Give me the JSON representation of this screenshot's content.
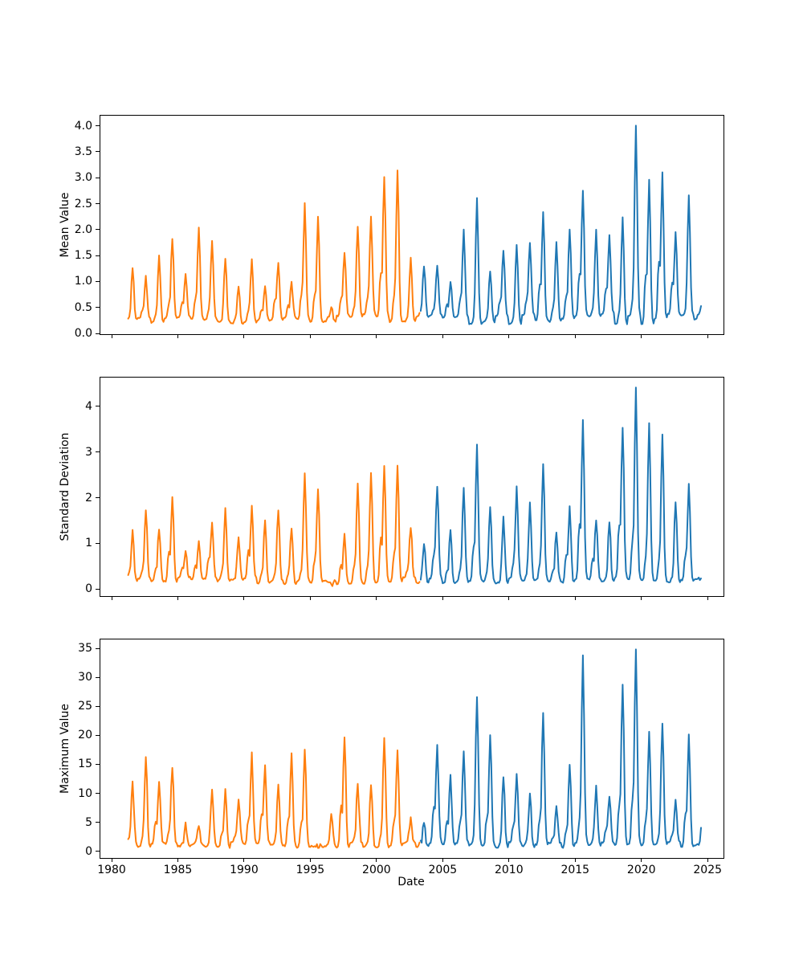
{
  "figure": {
    "background": "#ffffff"
  },
  "chart_data": {
    "type": "line",
    "title": "",
    "xlabel": "Date",
    "grid": false,
    "legend": "none",
    "xlim": [
      1979.15,
      2026.2
    ],
    "x_ticks": [
      1980,
      1985,
      1990,
      1995,
      2000,
      2005,
      2010,
      2015,
      2020,
      2025
    ],
    "x_tick_labels": [
      "1980",
      "1985",
      "1990",
      "1995",
      "2000",
      "2005",
      "2010",
      "2015",
      "2020",
      "2025"
    ],
    "x_resolution": "monthly",
    "years": [
      1981,
      1982,
      1983,
      1984,
      1985,
      1986,
      1987,
      1988,
      1989,
      1990,
      1991,
      1992,
      1993,
      1994,
      1995,
      1996,
      1997,
      1998,
      1999,
      2000,
      2001,
      2002,
      2003,
      2004,
      2005,
      2006,
      2007,
      2008,
      2009,
      2010,
      2011,
      2012,
      2013,
      2014,
      2015,
      2016,
      2017,
      2018,
      2019,
      2020,
      2021,
      2022,
      2023,
      2024
    ],
    "series": [
      {
        "name": "segment-1981-2003",
        "color": "#ff7f0e",
        "start": 1981.25,
        "end": 2003.3
      },
      {
        "name": "segment-2003-2024",
        "color": "#1f77b4",
        "start": 2003.33,
        "end": 2024.55
      }
    ],
    "subplots": [
      {
        "ylabel": "Mean Value",
        "y_ticks": [
          0.0,
          0.5,
          1.0,
          1.5,
          2.0,
          2.5,
          3.0,
          3.5,
          4.0
        ],
        "y_tick_labels": [
          "0.0",
          "0.5",
          "1.0",
          "1.5",
          "2.0",
          "2.5",
          "3.0",
          "3.5",
          "4.0"
        ],
        "baseline": 0.28,
        "floor": 0.13,
        "noise": 0.07,
        "yearly_peaks": [
          1.25,
          1.1,
          1.5,
          1.82,
          1.15,
          2.05,
          1.78,
          1.45,
          0.9,
          1.43,
          0.9,
          1.35,
          1.0,
          2.5,
          2.25,
          0.5,
          1.55,
          2.05,
          2.25,
          3.0,
          3.15,
          1.45,
          1.3,
          1.3,
          1.0,
          2.0,
          2.6,
          1.2,
          1.6,
          1.7,
          1.75,
          2.35,
          1.75,
          2.0,
          2.75,
          2.0,
          1.9,
          2.25,
          4.0,
          2.95,
          3.1,
          1.95,
          2.65,
          0.6
        ]
      },
      {
        "ylabel": "Standard Deviation",
        "y_ticks": [
          0,
          1,
          2,
          3,
          4
        ],
        "y_tick_labels": [
          "0",
          "1",
          "2",
          "3",
          "4"
        ],
        "baseline": 0.18,
        "floor": 0.03,
        "noise": 0.1,
        "yearly_peaks": [
          1.3,
          1.71,
          1.32,
          2.02,
          0.85,
          1.05,
          1.47,
          1.77,
          1.13,
          1.83,
          1.5,
          1.71,
          1.32,
          2.53,
          2.2,
          0.1,
          1.2,
          2.3,
          2.55,
          2.7,
          2.72,
          1.35,
          1.0,
          2.25,
          1.3,
          2.2,
          3.15,
          1.8,
          1.6,
          2.25,
          1.9,
          2.75,
          1.25,
          1.8,
          3.7,
          1.5,
          1.45,
          3.55,
          4.4,
          3.65,
          3.4,
          1.9,
          2.3,
          0.3
        ]
      },
      {
        "ylabel": "Maximum Value",
        "y_ticks": [
          0,
          5,
          10,
          15,
          20,
          25,
          30,
          35
        ],
        "y_tick_labels": [
          "0",
          "5",
          "10",
          "15",
          "20",
          "25",
          "30",
          "35"
        ],
        "baseline": 1.1,
        "floor": 0.25,
        "noise": 0.9,
        "yearly_peaks": [
          12.0,
          16.3,
          12.0,
          14.5,
          5.0,
          4.5,
          10.8,
          10.6,
          8.9,
          17.0,
          15.0,
          11.5,
          17.0,
          17.5,
          0.5,
          6.5,
          19.5,
          11.5,
          11.5,
          19.5,
          17.5,
          5.8,
          5.0,
          18.3,
          13.3,
          17.2,
          26.5,
          20.0,
          12.9,
          13.4,
          9.9,
          24.0,
          7.8,
          14.8,
          33.8,
          11.3,
          9.4,
          28.7,
          34.8,
          20.7,
          21.9,
          8.9,
          20.0,
          6.0
        ]
      }
    ]
  }
}
